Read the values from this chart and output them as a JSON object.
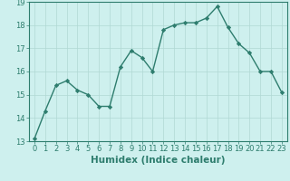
{
  "x": [
    0,
    1,
    2,
    3,
    4,
    5,
    6,
    7,
    8,
    9,
    10,
    11,
    12,
    13,
    14,
    15,
    16,
    17,
    18,
    19,
    20,
    21,
    22,
    23
  ],
  "y": [
    13.1,
    14.3,
    15.4,
    15.6,
    15.2,
    15.0,
    14.5,
    14.5,
    16.2,
    16.9,
    16.6,
    16.0,
    17.8,
    18.0,
    18.1,
    18.1,
    18.3,
    18.8,
    17.9,
    17.2,
    16.8,
    16.0,
    16.0,
    15.1
  ],
  "line_color": "#2e7d6e",
  "marker": "D",
  "markersize": 2.2,
  "linewidth": 1.0,
  "bg_color": "#cef0ee",
  "grid_color": "#b0d8d4",
  "xlabel": "Humidex (Indice chaleur)",
  "xlabel_fontsize": 7.5,
  "tick_fontsize": 6.0,
  "ylim": [
    13,
    19
  ],
  "xlim": [
    -0.5,
    23.5
  ],
  "yticks": [
    13,
    14,
    15,
    16,
    17,
    18,
    19
  ],
  "xticks": [
    0,
    1,
    2,
    3,
    4,
    5,
    6,
    7,
    8,
    9,
    10,
    11,
    12,
    13,
    14,
    15,
    16,
    17,
    18,
    19,
    20,
    21,
    22,
    23
  ]
}
